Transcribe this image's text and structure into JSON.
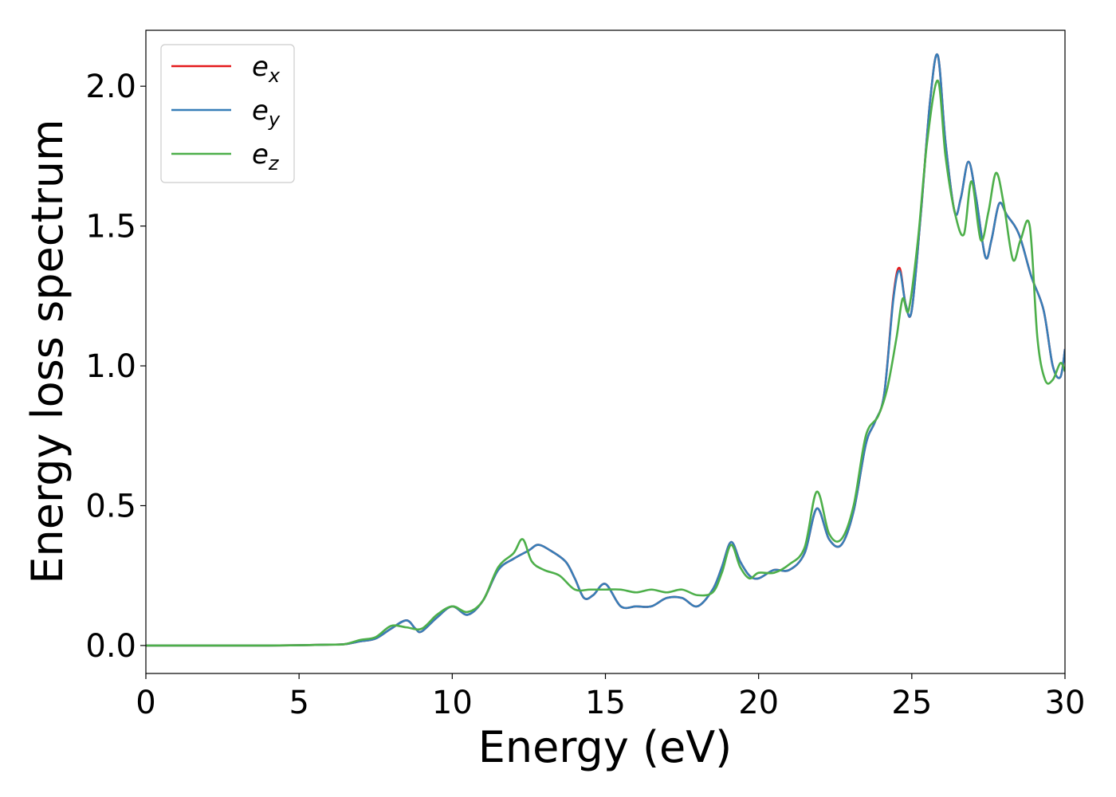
{
  "chart_data": {
    "type": "line",
    "xlabel": "Energy (eV)",
    "ylabel": "Energy loss spectrum",
    "xlim": [
      0,
      30
    ],
    "ylim": [
      -0.1,
      2.2
    ],
    "xticks": [
      0,
      5,
      10,
      15,
      20,
      25,
      30
    ],
    "xtick_labels": [
      "0",
      "5",
      "10",
      "15",
      "20",
      "25",
      "30"
    ],
    "yticks": [
      0.0,
      0.5,
      1.0,
      1.5,
      2.0
    ],
    "ytick_labels": [
      "0.0",
      "0.5",
      "1.0",
      "1.5",
      "2.0"
    ],
    "grid": false,
    "legend_placement": "top-left",
    "series": [
      {
        "name": "e_x",
        "base": "e",
        "sub": "x",
        "color": "#e41a1c",
        "x": [
          0,
          2,
          4,
          5,
          6,
          6.5,
          7,
          7.5,
          8,
          8.5,
          8.8,
          9,
          9.5,
          10,
          10.5,
          11,
          11.5,
          12,
          12.5,
          12.8,
          13.2,
          13.7,
          14,
          14.3,
          14.6,
          15,
          15.5,
          16,
          16.5,
          17,
          17.5,
          18,
          18.5,
          18.8,
          19.1,
          19.4,
          19.7,
          20,
          20.5,
          21,
          21.5,
          21.9,
          22.3,
          22.7,
          23.1,
          23.5,
          23.8,
          24.1,
          24.4,
          24.6,
          24.8,
          25,
          25.3,
          25.6,
          25.85,
          26.1,
          26.4,
          26.6,
          26.85,
          27.1,
          27.4,
          27.6,
          27.85,
          28.1,
          28.5,
          28.9,
          29.3,
          29.6,
          29.85,
          30
        ],
        "values": [
          0,
          0,
          0,
          0.001,
          0.003,
          0.005,
          0.015,
          0.025,
          0.06,
          0.09,
          0.06,
          0.05,
          0.1,
          0.14,
          0.11,
          0.16,
          0.27,
          0.31,
          0.34,
          0.36,
          0.34,
          0.3,
          0.24,
          0.17,
          0.18,
          0.22,
          0.14,
          0.14,
          0.14,
          0.17,
          0.17,
          0.14,
          0.2,
          0.28,
          0.37,
          0.3,
          0.25,
          0.24,
          0.27,
          0.27,
          0.33,
          0.49,
          0.38,
          0.36,
          0.48,
          0.72,
          0.8,
          0.9,
          1.25,
          1.35,
          1.22,
          1.2,
          1.55,
          1.95,
          2.11,
          1.8,
          1.55,
          1.6,
          1.73,
          1.6,
          1.39,
          1.45,
          1.58,
          1.54,
          1.47,
          1.32,
          1.2,
          1.0,
          0.96,
          1.06
        ]
      },
      {
        "name": "e_y",
        "base": "e",
        "sub": "y",
        "color": "#377eb8",
        "x": [
          0,
          2,
          4,
          5,
          6,
          6.5,
          7,
          7.5,
          8,
          8.5,
          8.8,
          9,
          9.5,
          10,
          10.5,
          11,
          11.5,
          12,
          12.5,
          12.8,
          13.2,
          13.7,
          14,
          14.3,
          14.6,
          15,
          15.5,
          16,
          16.5,
          17,
          17.5,
          18,
          18.5,
          18.8,
          19.1,
          19.4,
          19.7,
          20,
          20.5,
          21,
          21.5,
          21.9,
          22.3,
          22.7,
          23.1,
          23.5,
          23.8,
          24.1,
          24.4,
          24.6,
          24.8,
          25,
          25.3,
          25.6,
          25.85,
          26.1,
          26.4,
          26.6,
          26.85,
          27.1,
          27.4,
          27.6,
          27.85,
          28.1,
          28.5,
          28.9,
          29.3,
          29.6,
          29.85,
          30
        ],
        "values": [
          0,
          0,
          0,
          0.001,
          0.003,
          0.005,
          0.015,
          0.025,
          0.06,
          0.09,
          0.06,
          0.05,
          0.1,
          0.14,
          0.11,
          0.16,
          0.27,
          0.31,
          0.34,
          0.36,
          0.34,
          0.3,
          0.24,
          0.17,
          0.18,
          0.22,
          0.14,
          0.14,
          0.14,
          0.17,
          0.17,
          0.14,
          0.2,
          0.28,
          0.37,
          0.3,
          0.25,
          0.24,
          0.27,
          0.27,
          0.33,
          0.49,
          0.38,
          0.36,
          0.48,
          0.72,
          0.8,
          0.9,
          1.24,
          1.34,
          1.22,
          1.2,
          1.55,
          1.95,
          2.11,
          1.8,
          1.55,
          1.6,
          1.73,
          1.6,
          1.39,
          1.45,
          1.58,
          1.54,
          1.47,
          1.32,
          1.2,
          1.0,
          0.96,
          1.06
        ]
      },
      {
        "name": "e_z",
        "base": "e",
        "sub": "z",
        "color": "#4daf4a",
        "x": [
          0,
          2,
          4,
          5,
          6,
          6.5,
          7,
          7.5,
          8,
          8.5,
          9,
          9.5,
          10,
          10.5,
          11,
          11.5,
          12,
          12.3,
          12.6,
          13,
          13.5,
          14,
          14.5,
          15,
          15.5,
          16,
          16.5,
          17,
          17.5,
          18,
          18.5,
          18.8,
          19.1,
          19.4,
          19.7,
          20,
          20.5,
          21,
          21.5,
          21.9,
          22.3,
          22.7,
          23.1,
          23.5,
          23.9,
          24.2,
          24.5,
          24.7,
          24.9,
          25.2,
          25.5,
          25.85,
          26.1,
          26.4,
          26.7,
          26.95,
          27.25,
          27.5,
          27.75,
          28.0,
          28.3,
          28.55,
          28.85,
          29.1,
          29.35,
          29.6,
          29.85,
          30
        ],
        "values": [
          0,
          0,
          0,
          0.001,
          0.003,
          0.005,
          0.02,
          0.03,
          0.07,
          0.065,
          0.06,
          0.11,
          0.14,
          0.12,
          0.16,
          0.28,
          0.33,
          0.38,
          0.3,
          0.27,
          0.25,
          0.2,
          0.2,
          0.2,
          0.2,
          0.19,
          0.2,
          0.19,
          0.2,
          0.18,
          0.19,
          0.26,
          0.36,
          0.28,
          0.24,
          0.26,
          0.26,
          0.29,
          0.35,
          0.55,
          0.4,
          0.38,
          0.5,
          0.75,
          0.82,
          0.92,
          1.1,
          1.24,
          1.2,
          1.45,
          1.8,
          2.02,
          1.75,
          1.55,
          1.47,
          1.66,
          1.45,
          1.55,
          1.69,
          1.58,
          1.38,
          1.45,
          1.5,
          1.1,
          0.95,
          0.95,
          1.01,
          0.98
        ]
      }
    ]
  }
}
